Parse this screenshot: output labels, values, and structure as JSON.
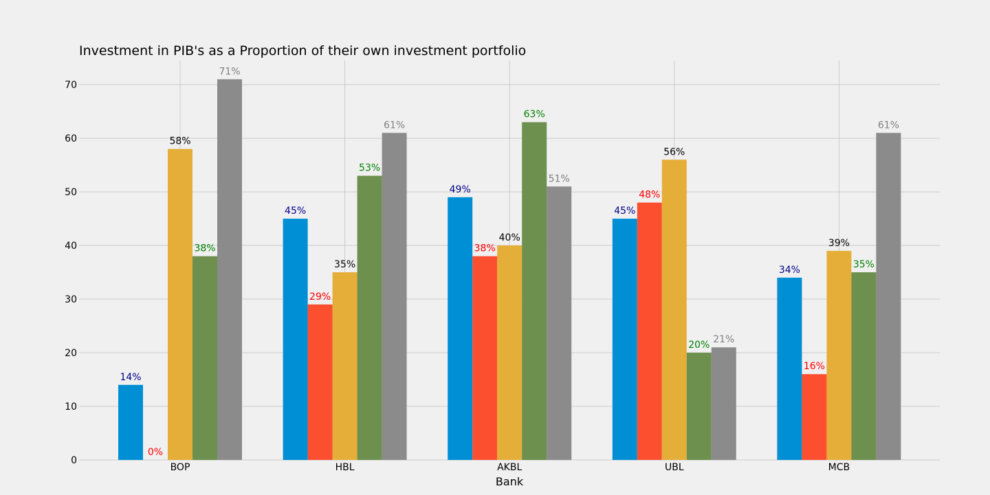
{
  "chart_data": {
    "type": "bar",
    "title": "Investment in PIB's as a Proportion of their own investment portfolio",
    "xlabel": "Bank",
    "ylabel": "",
    "categories": [
      "BOP",
      "HBL",
      "AKBL",
      "UBL",
      "MCB"
    ],
    "ylim": [
      0,
      74.5
    ],
    "yticks": [
      0,
      10,
      20,
      30,
      40,
      50,
      60,
      70
    ],
    "grid": true,
    "legend": "none",
    "series": [
      {
        "color": "#008fd5",
        "label_color": "#00008b",
        "values": [
          14,
          45,
          49,
          45,
          34
        ],
        "labels": [
          "14%",
          "45%",
          "49%",
          "45%",
          "34%"
        ]
      },
      {
        "color": "#fc4f30",
        "label_color": "#ff0000",
        "values": [
          0,
          29,
          38,
          48,
          16
        ],
        "labels": [
          "0%",
          "29%",
          "38%",
          "48%",
          "16%"
        ]
      },
      {
        "color": "#e5ae38",
        "label_color": "#000000",
        "values": [
          58,
          35,
          40,
          56,
          39
        ],
        "labels": [
          "58%",
          "35%",
          "40%",
          "56%",
          "39%"
        ]
      },
      {
        "color": "#6d904f",
        "label_color": "#008000",
        "values": [
          38,
          53,
          63,
          20,
          35
        ],
        "labels": [
          "38%",
          "53%",
          "63%",
          "20%",
          "35%"
        ]
      },
      {
        "color": "#8b8b8b",
        "label_color": "#808080",
        "values": [
          71,
          61,
          51,
          21,
          61
        ],
        "labels": [
          "71%",
          "61%",
          "51%",
          "21%",
          "61%"
        ]
      }
    ]
  }
}
